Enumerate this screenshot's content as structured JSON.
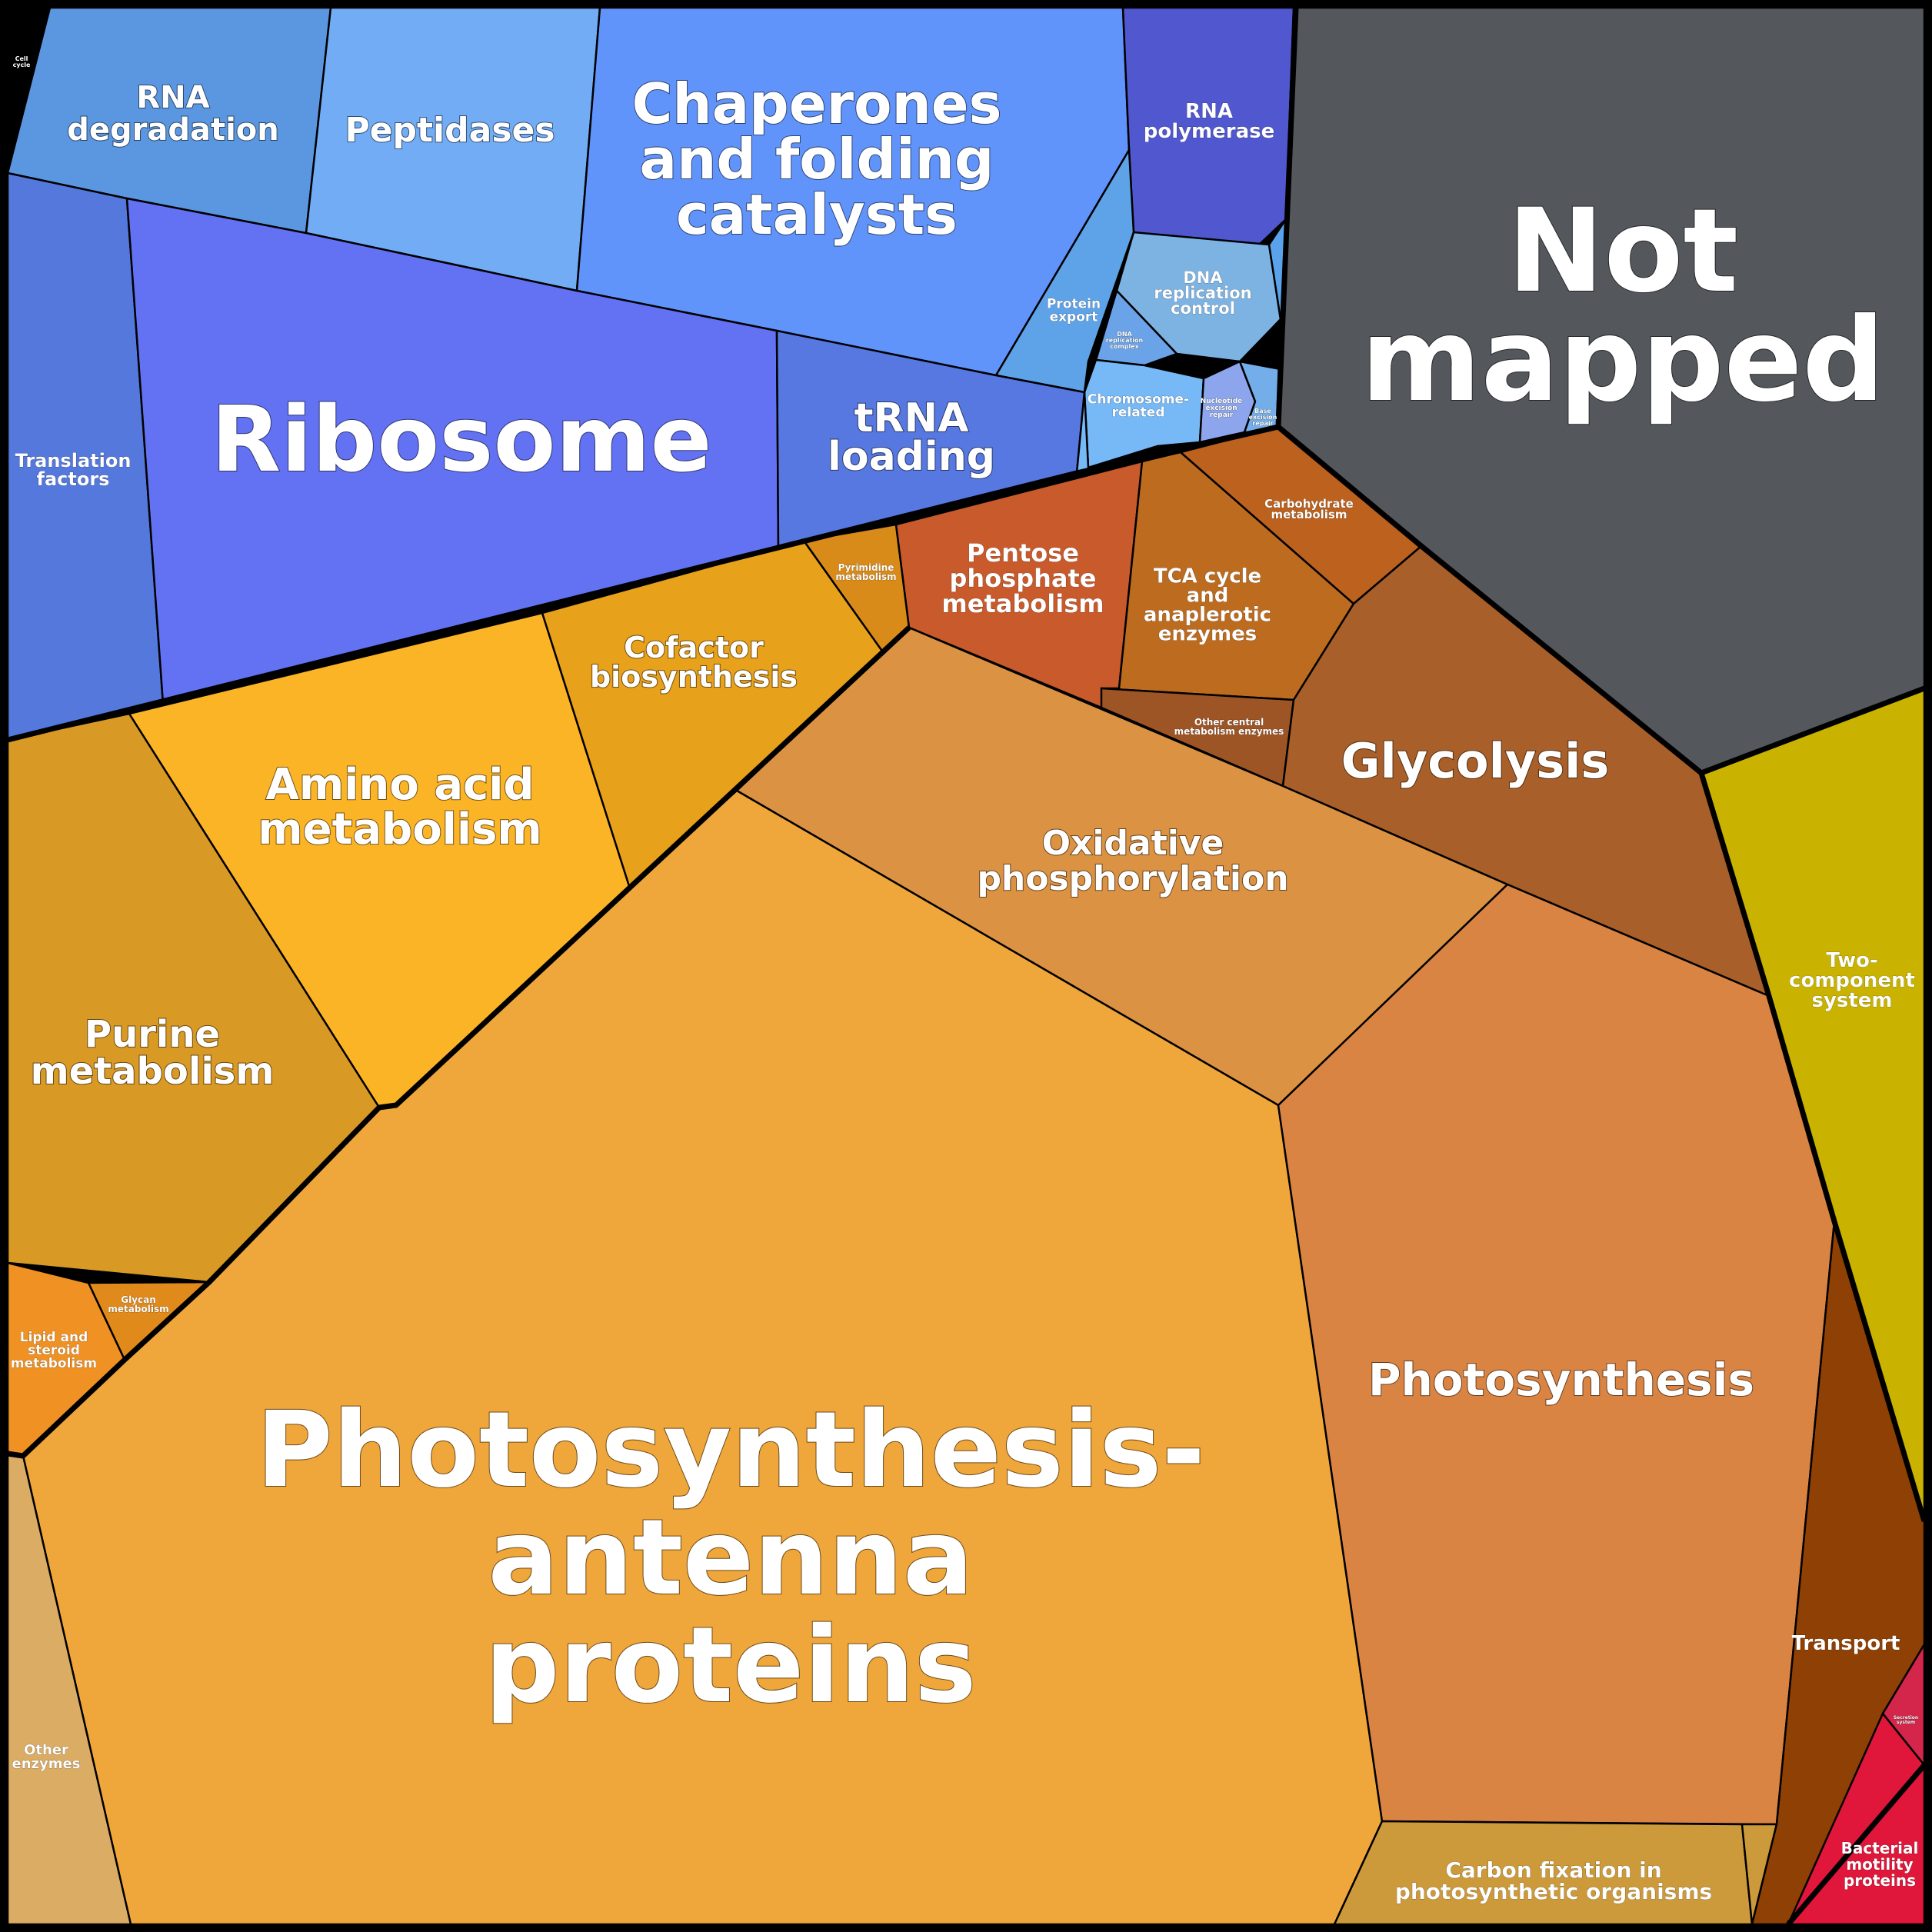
{
  "regions": {
    "rna_degradation": {
      "label": [
        "RNA",
        "degradation"
      ],
      "color": "#5b97e0"
    },
    "peptidases": {
      "label": [
        "Peptidases"
      ],
      "color": "#71acf5"
    },
    "chaperones": {
      "label": [
        "Chaperones",
        "and folding",
        "catalysts"
      ],
      "color": "#6194fb"
    },
    "rna_polymerase": {
      "label": [
        "RNA",
        "polymerase"
      ],
      "color": "#5057cf"
    },
    "protein_export": {
      "label": [
        "Protein",
        "export"
      ],
      "color": "#5ea2e8"
    },
    "dna_replication": {
      "label": [
        "DNA",
        "replication",
        "control"
      ],
      "color": "#7db3e3"
    },
    "chromosome": {
      "label": [
        "Chromosome-",
        "related"
      ],
      "color": "#77b9f7"
    },
    "dna_repl_complex": {
      "label": [
        "DNA",
        "replication",
        "complex"
      ],
      "color": "#6ba3e8"
    },
    "nucleotide_excision": {
      "label": [
        "Nucleotide",
        "excision",
        "repair"
      ],
      "color": "#8da5ec"
    },
    "base_excision": {
      "label": [
        "Base",
        "excision",
        "repair"
      ],
      "color": "#74aeea"
    },
    "translation_factors": {
      "label": [
        "Translation",
        "factors"
      ],
      "color": "#5478dc"
    },
    "ribosome": {
      "label": [
        "Ribosome"
      ],
      "color": "#6372f2"
    },
    "trna_loading": {
      "label": [
        "tRNA",
        "loading"
      ],
      "color": "#5678e0"
    },
    "cell_cycle": {
      "label": [
        "Cell",
        "cycle"
      ],
      "color": "#5aa3ea"
    },
    "not_mapped": {
      "label": [
        "Not",
        "mapped"
      ],
      "color": "#54585c"
    },
    "pyrimidine": {
      "label": [
        "Pyrimidine",
        "metabolism"
      ],
      "color": "#d98b1a"
    },
    "pentose_phosphate": {
      "label": [
        "Pentose",
        "phosphate",
        "metabolism"
      ],
      "color": "#c85a2c"
    },
    "tca_cycle": {
      "label": [
        "TCA cycle",
        "and",
        "anaplerotic",
        "enzymes"
      ],
      "color": "#bd6b1f"
    },
    "carbohydrate": {
      "label": [
        "Carbohydrate",
        "metabolism"
      ],
      "color": "#bc611e"
    },
    "other_central": {
      "label": [
        "Other central",
        "metabolism enzymes"
      ],
      "color": "#9e5526"
    },
    "glycolysis": {
      "label": [
        "Glycolysis"
      ],
      "color": "#a95f29"
    },
    "amino_acid": {
      "label": [
        "Amino acid",
        "metabolism"
      ],
      "color": "#fcb427"
    },
    "cofactor": {
      "label": [
        "Cofactor",
        "biosynthesis"
      ],
      "color": "#e8a11b"
    },
    "oxidative_phos": {
      "label": [
        "Oxidative",
        "phosphorylation"
      ],
      "color": "#db9243"
    },
    "purine": {
      "label": [
        "Purine",
        "metabolism"
      ],
      "color": "#d99925"
    },
    "glycan": {
      "label": [
        "Glycan",
        "metabolism"
      ],
      "color": "#e18a1c"
    },
    "lipid_steroid": {
      "label": [
        "Lipid and",
        "steroid",
        "metabolism"
      ],
      "color": "#ef9123"
    },
    "antenna": {
      "label": [
        "Photosynthesis-",
        "antenna",
        "proteins"
      ],
      "color": "#efa63a"
    },
    "photosynthesis": {
      "label": [
        "Photosynthesis"
      ],
      "color": "#da8444"
    },
    "carbon_fixation": {
      "label": [
        "Carbon fixation in",
        "photosynthetic organisms"
      ],
      "color": "#cc9a3a"
    },
    "other_enzymes": {
      "label": [
        "Other",
        "enzymes"
      ],
      "color": "#dbac64"
    },
    "two_component": {
      "label": [
        "Two-",
        "component",
        "system"
      ],
      "color": "#c9b300"
    },
    "transport": {
      "label": [
        "Transport"
      ],
      "color": "#8f4004"
    },
    "secretion_system": {
      "label": [
        "Secretion",
        "system"
      ],
      "color": "#d3264a"
    },
    "bacterial_motility": {
      "label": [
        "Bacterial",
        "motility",
        "proteins"
      ],
      "color": "#e0163b"
    }
  }
}
